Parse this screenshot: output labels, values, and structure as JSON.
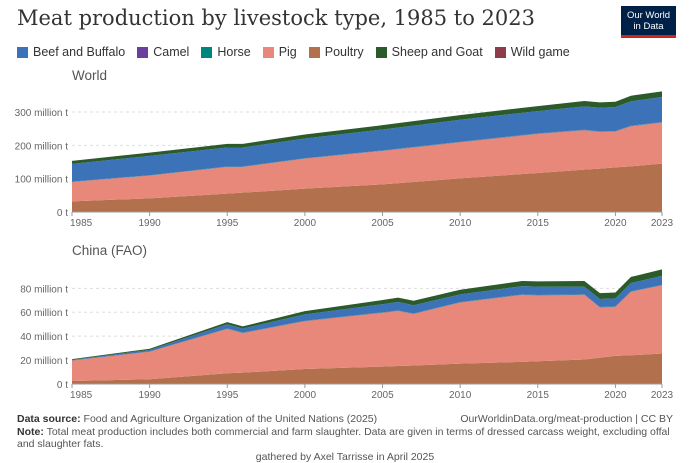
{
  "title": "Meat production by livestock type, 1985 to 2023",
  "logo": {
    "line1": "Our World",
    "line2": "in Data",
    "bg": "#002147",
    "accent": "#ce261e"
  },
  "legend": [
    {
      "label": "Beef and Buffalo",
      "color": "#3c73b8"
    },
    {
      "label": "Camel",
      "color": "#6b3fa0"
    },
    {
      "label": "Horse",
      "color": "#00847e"
    },
    {
      "label": "Pig",
      "color": "#e8887a"
    },
    {
      "label": "Poultry",
      "color": "#b2714c"
    },
    {
      "label": "Sheep and Goat",
      "color": "#2b5a2b"
    },
    {
      "label": "Wild game",
      "color": "#8e3b4a"
    }
  ],
  "footer": {
    "source_label": "Data source:",
    "source_text": "Food and Agriculture Organization of the United Nations (2025)",
    "url": "OurWorldinData.org/meat-production | CC BY",
    "note_label": "Note:",
    "note_text": "Total meat production includes both commercial and farm slaughter. Data are given in terms of dressed carcass weight, excluding offal and slaughter fats.",
    "gathered": "gathered by Axel Tarrisse in April 2025"
  },
  "chart_data": [
    {
      "type": "area",
      "title": "World",
      "stacked": true,
      "x": [
        1985,
        1990,
        1995,
        1996,
        2000,
        2005,
        2010,
        2015,
        2018,
        2019,
        2020,
        2021,
        2023
      ],
      "x_ticks": [
        "1985",
        "1990",
        "1995",
        "2000",
        "2005",
        "2010",
        "2015",
        "2020",
        "2023"
      ],
      "y_ticks": [
        0,
        100,
        200,
        300
      ],
      "y_tick_labels": [
        "0 t",
        "100 million t",
        "200 million t",
        "300 million t"
      ],
      "ylim": [
        0,
        360
      ],
      "grid": true,
      "series": [
        {
          "name": "Poultry",
          "values": [
            32,
            41,
            55,
            58,
            70,
            83,
            101,
            117,
            127,
            130,
            134,
            137,
            145
          ]
        },
        {
          "name": "Pig",
          "values": [
            58,
            68,
            80,
            77,
            90,
            100,
            108,
            117,
            118,
            110,
            107,
            120,
            123
          ]
        },
        {
          "name": "Wild game",
          "values": [
            0.5,
            0.5,
            0.5,
            0.5,
            0.5,
            0.5,
            0.5,
            0.5,
            0.5,
            0.5,
            0.5,
            0.5,
            0.5
          ]
        },
        {
          "name": "Horse",
          "values": [
            0.6,
            0.6,
            0.6,
            0.6,
            0.6,
            0.7,
            0.7,
            0.8,
            0.8,
            0.8,
            0.8,
            0.8,
            0.8
          ]
        },
        {
          "name": "Camel",
          "values": [
            0.2,
            0.2,
            0.3,
            0.3,
            0.3,
            0.3,
            0.4,
            0.5,
            0.6,
            0.6,
            0.6,
            0.6,
            0.6
          ]
        },
        {
          "name": "Beef and Buffalo",
          "values": [
            53,
            58,
            57,
            57,
            59,
            63,
            66,
            67,
            70,
            71,
            72,
            73,
            75
          ]
        },
        {
          "name": "Sheep and Goat",
          "values": [
            9,
            10,
            11,
            11,
            12,
            13,
            14,
            15,
            16,
            16,
            16,
            17,
            17
          ]
        }
      ]
    },
    {
      "type": "area",
      "title": "China (FAO)",
      "stacked": true,
      "x": [
        1985,
        1990,
        1995,
        1996,
        2000,
        2005,
        2006,
        2007,
        2010,
        2014,
        2015,
        2018,
        2019,
        2020,
        2021,
        2023
      ],
      "x_ticks": [
        "1985",
        "1990",
        "1995",
        "2000",
        "2005",
        "2010",
        "2015",
        "2020",
        "2023"
      ],
      "y_ticks": [
        0,
        20,
        40,
        60,
        80
      ],
      "y_tick_labels": [
        "0 t",
        "20 million t",
        "40 million t",
        "60 million t",
        "80 million t"
      ],
      "ylim": [
        0,
        97
      ],
      "grid": true,
      "series": [
        {
          "name": "Poultry",
          "values": [
            2.5,
            4,
            9,
            9.5,
            12.5,
            14.5,
            15,
            15.5,
            17,
            18.5,
            19,
            20.5,
            22,
            23.5,
            24,
            25.5
          ]
        },
        {
          "name": "Pig",
          "values": [
            17,
            23,
            37,
            33,
            40,
            45,
            46,
            43,
            51,
            56,
            55,
            54,
            42,
            41,
            53,
            57
          ]
        },
        {
          "name": "Wild game",
          "values": [
            0.2,
            0.2,
            0.2,
            0.2,
            0.2,
            0.2,
            0.2,
            0.2,
            0.2,
            0.2,
            0.2,
            0.2,
            0.2,
            0.2,
            0.2,
            0.2
          ]
        },
        {
          "name": "Horse",
          "values": [
            0.1,
            0.1,
            0.2,
            0.2,
            0.2,
            0.2,
            0.2,
            0.2,
            0.2,
            0.2,
            0.2,
            0.2,
            0.2,
            0.2,
            0.2,
            0.2
          ]
        },
        {
          "name": "Camel",
          "values": [
            0.02,
            0.02,
            0.02,
            0.02,
            0.02,
            0.03,
            0.03,
            0.03,
            0.03,
            0.03,
            0.03,
            0.03,
            0.03,
            0.03,
            0.03,
            0.03
          ]
        },
        {
          "name": "Beef and Buffalo",
          "values": [
            0.4,
            1.2,
            3.5,
            3.5,
            5.3,
            6.8,
            7.2,
            6.9,
            6.5,
            6.9,
            7,
            6.4,
            6.7,
            6.7,
            7,
            7.5
          ]
        },
        {
          "name": "Sheep and Goat",
          "values": [
            0.6,
            1,
            1.8,
            1.8,
            2.7,
            3.5,
            3.6,
            3.8,
            3.9,
            4.3,
            4.4,
            4.8,
            4.9,
            4.9,
            5.1,
            5.4
          ]
        }
      ]
    }
  ]
}
